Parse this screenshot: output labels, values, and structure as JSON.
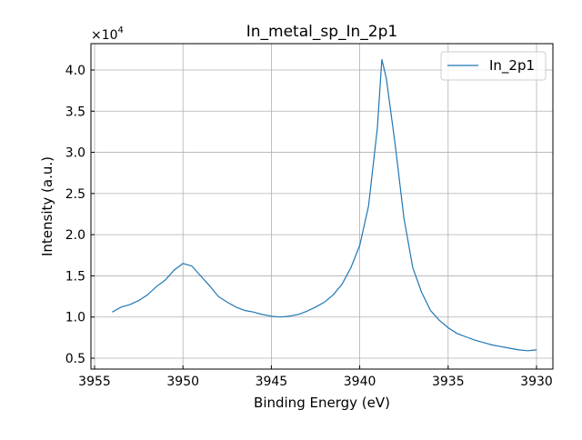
{
  "chart_data": {
    "type": "line",
    "title": "In_metal_sp_In_2p1",
    "xlabel": "Binding Energy (eV)",
    "ylabel": "Intensity (a.u.)",
    "y_multiplier": "×10",
    "y_multiplier_exp": "4",
    "xlim": [
      3955,
      3929
    ],
    "ylim": [
      0.38,
      4.32
    ],
    "x_reversed": true,
    "grid": true,
    "legend_position": "top-right",
    "xticks": [
      3955,
      3950,
      3945,
      3940,
      3935,
      3930
    ],
    "xtick_labels": [
      "3955",
      "3950",
      "3945",
      "3940",
      "3935",
      "3930"
    ],
    "yticks": [
      0.5,
      1.0,
      1.5,
      2.0,
      2.5,
      3.0,
      3.5,
      4.0
    ],
    "ytick_labels": [
      "0.5",
      "1.0",
      "1.5",
      "2.0",
      "2.5",
      "3.0",
      "3.5",
      "4.0"
    ],
    "series": [
      {
        "name": "In_2p1",
        "color": "#1f77b4",
        "x": [
          3954,
          3953.5,
          3953,
          3952.5,
          3952,
          3951.5,
          3951,
          3950.5,
          3950,
          3949.5,
          3949,
          3948.5,
          3948,
          3947.5,
          3947,
          3946.5,
          3946,
          3945.5,
          3945,
          3944.5,
          3944,
          3943.5,
          3943,
          3942.5,
          3942,
          3941.5,
          3941,
          3940.5,
          3940,
          3939.5,
          3939,
          3938.75,
          3938.5,
          3938,
          3937.5,
          3937,
          3936.5,
          3936,
          3935.5,
          3935,
          3934.5,
          3934,
          3933.5,
          3933,
          3932.5,
          3932,
          3931.5,
          3931,
          3930.5,
          3930
        ],
        "y": [
          1.06,
          1.12,
          1.15,
          1.2,
          1.27,
          1.37,
          1.45,
          1.57,
          1.65,
          1.62,
          1.5,
          1.38,
          1.25,
          1.18,
          1.12,
          1.08,
          1.06,
          1.03,
          1.01,
          1.0,
          1.01,
          1.03,
          1.07,
          1.12,
          1.18,
          1.27,
          1.4,
          1.6,
          1.87,
          2.35,
          3.3,
          4.13,
          3.9,
          3.1,
          2.2,
          1.6,
          1.3,
          1.08,
          0.96,
          0.87,
          0.8,
          0.76,
          0.72,
          0.69,
          0.66,
          0.64,
          0.62,
          0.6,
          0.59,
          0.6
        ]
      }
    ]
  }
}
